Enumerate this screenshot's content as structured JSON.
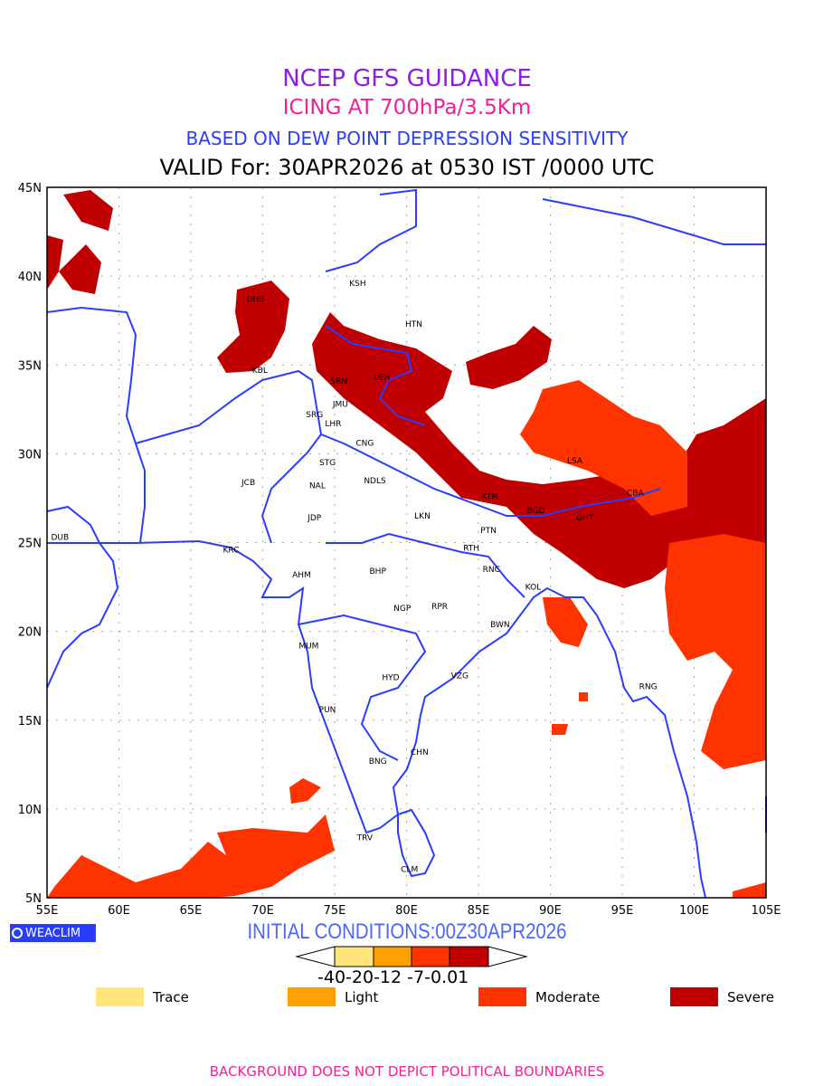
{
  "header": {
    "title": "NCEP GFS GUIDANCE",
    "subtitle": "ICING AT 700hPa/3.5Km",
    "method": "BASED ON DEW POINT DEPRESSION SENSITIVITY",
    "valid": "VALID For: 30APR2026 at 0530 IST /0000 UTC"
  },
  "axes": {
    "lon_labels": [
      "55E",
      "60E",
      "65E",
      "70E",
      "75E",
      "80E",
      "85E",
      "90E",
      "95E",
      "100E",
      "105E"
    ],
    "lat_labels": [
      "45N",
      "40N",
      "35N",
      "30N",
      "25N",
      "20N",
      "15N",
      "10N",
      "5N"
    ],
    "lon_range": [
      55,
      105
    ],
    "lat_range": [
      5,
      45
    ]
  },
  "cities": [
    {
      "code": "KSH",
      "lon": 76.6,
      "lat": 39.6
    },
    {
      "code": "DHB",
      "lon": 69.5,
      "lat": 38.7
    },
    {
      "code": "HTN",
      "lon": 80.5,
      "lat": 37.3
    },
    {
      "code": "KBL",
      "lon": 69.8,
      "lat": 34.7
    },
    {
      "code": "SRN",
      "lon": 75.3,
      "lat": 34.1
    },
    {
      "code": "LEH",
      "lon": 78.3,
      "lat": 34.3
    },
    {
      "code": "JMU",
      "lon": 75.4,
      "lat": 32.8
    },
    {
      "code": "SRG",
      "lon": 73.6,
      "lat": 32.2
    },
    {
      "code": "LHR",
      "lon": 74.9,
      "lat": 31.7
    },
    {
      "code": "CNG",
      "lon": 77.1,
      "lat": 30.6
    },
    {
      "code": "STG",
      "lon": 74.5,
      "lat": 29.5
    },
    {
      "code": "JCB",
      "lon": 69.0,
      "lat": 28.4
    },
    {
      "code": "NAL",
      "lon": 73.8,
      "lat": 28.2
    },
    {
      "code": "NDLS",
      "lon": 77.8,
      "lat": 28.5
    },
    {
      "code": "JDP",
      "lon": 73.6,
      "lat": 26.4
    },
    {
      "code": "LKN",
      "lon": 81.1,
      "lat": 26.5
    },
    {
      "code": "KTM",
      "lon": 85.8,
      "lat": 27.6
    },
    {
      "code": "BGD",
      "lon": 89.0,
      "lat": 26.8
    },
    {
      "code": "CBA",
      "lon": 95.9,
      "lat": 27.8
    },
    {
      "code": "GHT",
      "lon": 92.4,
      "lat": 26.4
    },
    {
      "code": "LSA",
      "lon": 91.7,
      "lat": 29.6
    },
    {
      "code": "PTN",
      "lon": 85.7,
      "lat": 25.7
    },
    {
      "code": "RTH",
      "lon": 84.5,
      "lat": 24.7
    },
    {
      "code": "DUB",
      "lon": 55.9,
      "lat": 25.3
    },
    {
      "code": "KRC",
      "lon": 67.8,
      "lat": 24.6
    },
    {
      "code": "AHM",
      "lon": 72.7,
      "lat": 23.2
    },
    {
      "code": "BHP",
      "lon": 78.0,
      "lat": 23.4
    },
    {
      "code": "RNC",
      "lon": 85.9,
      "lat": 23.5
    },
    {
      "code": "KOL",
      "lon": 88.8,
      "lat": 22.5
    },
    {
      "code": "NGP",
      "lon": 79.7,
      "lat": 21.3
    },
    {
      "code": "RPR",
      "lon": 82.3,
      "lat": 21.4
    },
    {
      "code": "BWN",
      "lon": 86.5,
      "lat": 20.4
    },
    {
      "code": "MUM",
      "lon": 73.2,
      "lat": 19.2
    },
    {
      "code": "HYD",
      "lon": 78.9,
      "lat": 17.4
    },
    {
      "code": "VZG",
      "lon": 83.7,
      "lat": 17.5
    },
    {
      "code": "RNG",
      "lon": 96.8,
      "lat": 16.9
    },
    {
      "code": "PUN",
      "lon": 74.5,
      "lat": 15.6
    },
    {
      "code": "CHN",
      "lon": 80.9,
      "lat": 13.2
    },
    {
      "code": "BNG",
      "lon": 78.0,
      "lat": 12.7
    },
    {
      "code": "TRV",
      "lon": 77.1,
      "lat": 8.4
    },
    {
      "code": "CLM",
      "lon": 80.2,
      "lat": 6.6
    }
  ],
  "footer_info": {
    "logo": "WEACLIM",
    "initial_conditions": "INITIAL CONDITIONS:00Z30APR2026",
    "disclaimer": "BACKGROUND DOES NOT DEPICT POLITICAL BOUNDARIES"
  },
  "colorbar": {
    "ticks": "-40-20-12 -7-0.01",
    "colors": [
      "#ffe57a",
      "#ffa000",
      "#ff3300",
      "#c00000"
    ]
  },
  "legend": [
    {
      "label": "Trace",
      "color": "#ffe57a"
    },
    {
      "label": "Light",
      "color": "#ffa000"
    },
    {
      "label": "Moderate",
      "color": "#ff3300"
    },
    {
      "label": "Severe",
      "color": "#c00000"
    }
  ]
}
